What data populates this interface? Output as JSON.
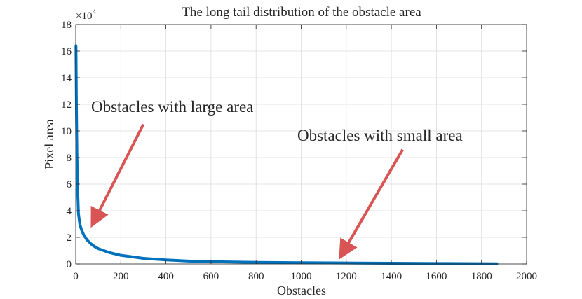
{
  "chart_data": {
    "type": "line",
    "title": "The long tail distribution of the obstacle area",
    "xlabel": "Obstacles",
    "ylabel": "Pixel area",
    "y_multiplier": "×10",
    "y_exponent": "4",
    "xlim": [
      0,
      2000
    ],
    "ylim": [
      0,
      18
    ],
    "xticks": [
      0,
      200,
      400,
      600,
      800,
      1000,
      1200,
      1400,
      1600,
      1800,
      2000
    ],
    "yticks": [
      0,
      2,
      4,
      6,
      8,
      10,
      12,
      14,
      16,
      18
    ],
    "grid": true,
    "series": [
      {
        "color": "#0072BD",
        "x": [
          1,
          3,
          5,
          8,
          12,
          18,
          25,
          35,
          50,
          75,
          100,
          150,
          200,
          300,
          400,
          500,
          600,
          800,
          1000,
          1200,
          1400,
          1600,
          1800,
          1868
        ],
        "y": [
          16.4,
          12.0,
          8.5,
          5.8,
          3.8,
          3.0,
          2.6,
          2.2,
          1.8,
          1.4,
          1.15,
          0.85,
          0.65,
          0.42,
          0.3,
          0.22,
          0.17,
          0.12,
          0.09,
          0.07,
          0.05,
          0.035,
          0.02,
          0.01
        ]
      }
    ],
    "annotations": [
      {
        "text": "Obstacles with large area",
        "color": "#D95555",
        "arrow_from": [
          300,
          10.5
        ],
        "arrow_to": [
          78,
          3.1
        ]
      },
      {
        "text": "Obstacles with small area",
        "color": "#D95555",
        "arrow_from": [
          1450,
          8.6
        ],
        "arrow_to": [
          1180,
          0.7
        ]
      }
    ]
  }
}
